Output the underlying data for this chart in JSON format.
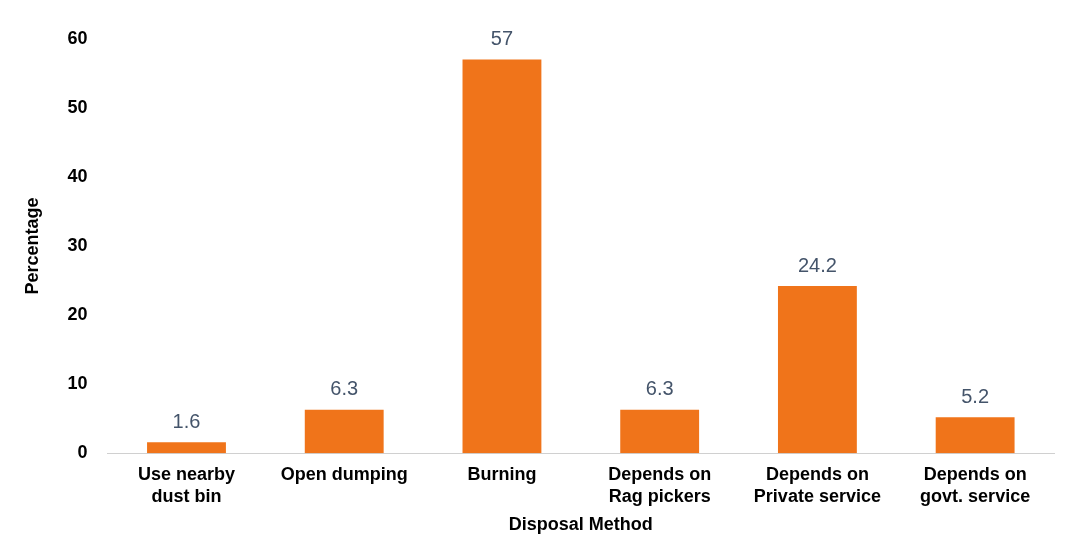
{
  "chart_data": {
    "type": "bar",
    "xlabel": "Disposal Method",
    "ylabel": "Percentage",
    "categories": [
      "Use nearby dust bin",
      "Open dumping",
      "Burning",
      "Depends on Rag pickers",
      "Depends on Private service",
      "Depends on govt. service"
    ],
    "values": [
      1.6,
      6.3,
      57,
      6.3,
      24.2,
      5.2
    ],
    "color": "#f0741a",
    "ylim": [
      0,
      60
    ],
    "yticks": [
      0,
      10,
      20,
      30,
      40,
      50,
      60
    ],
    "grid": false,
    "legend": false,
    "data_labels": true
  }
}
